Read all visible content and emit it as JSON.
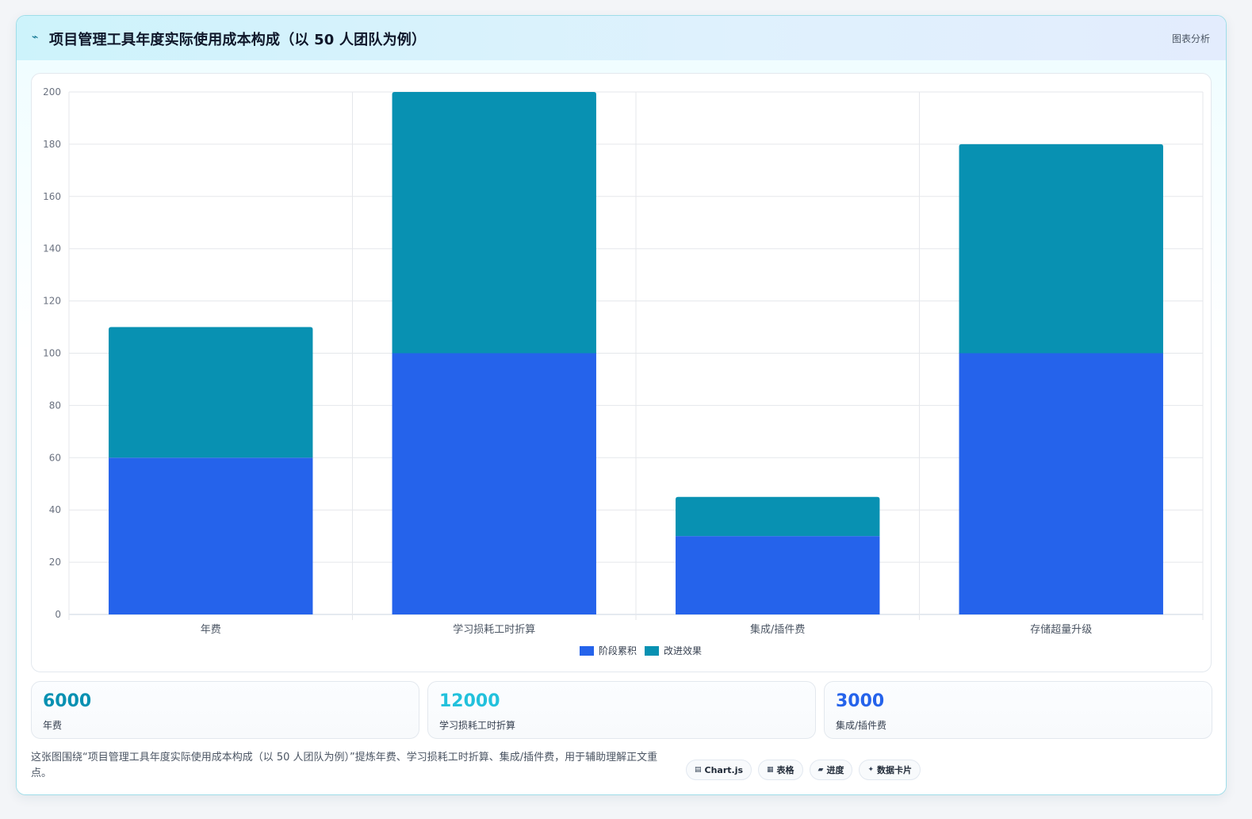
{
  "header": {
    "title": "项目管理工具年度实际使用成本构成（以 50 人团队为例）",
    "tag": "图表分析",
    "icon": "pulse-icon"
  },
  "chart_data": {
    "type": "bar",
    "stacked": true,
    "categories": [
      "年费",
      "学习损耗工时折算",
      "集成/插件费",
      "存储超量升级"
    ],
    "series": [
      {
        "name": "阶段累积",
        "color": "#2563eb",
        "values": [
          60,
          100,
          30,
          100
        ]
      },
      {
        "name": "改进效果",
        "color": "#0891b2",
        "values": [
          50,
          100,
          15,
          80
        ]
      }
    ],
    "ylim": [
      0,
      200
    ],
    "yticks": [
      0,
      20,
      40,
      60,
      80,
      100,
      120,
      140,
      160,
      180,
      200
    ],
    "grid": true,
    "legend_position": "bottom-center"
  },
  "stats": [
    {
      "value": "6000",
      "label": "年费",
      "color": "#0891b2"
    },
    {
      "value": "12000",
      "label": "学习损耗工时折算",
      "color": "#22c1dc"
    },
    {
      "value": "3000",
      "label": "集成/插件费",
      "color": "#2563eb"
    }
  ],
  "description": "这张图围绕“项目管理工具年度实际使用成本构成（以 50 人团队为例）”提炼年费、学习损耗工时折算、集成/插件费，用于辅助理解正文重点。",
  "tags": [
    {
      "icon": "▤",
      "label": "Chart.js",
      "icon_name": "chart-icon"
    },
    {
      "icon": "▦",
      "label": "表格",
      "icon_name": "table-icon"
    },
    {
      "icon": "▰",
      "label": "进度",
      "icon_name": "progress-icon"
    },
    {
      "icon": "✦",
      "label": "数据卡片",
      "icon_name": "sparkle-icon"
    }
  ]
}
